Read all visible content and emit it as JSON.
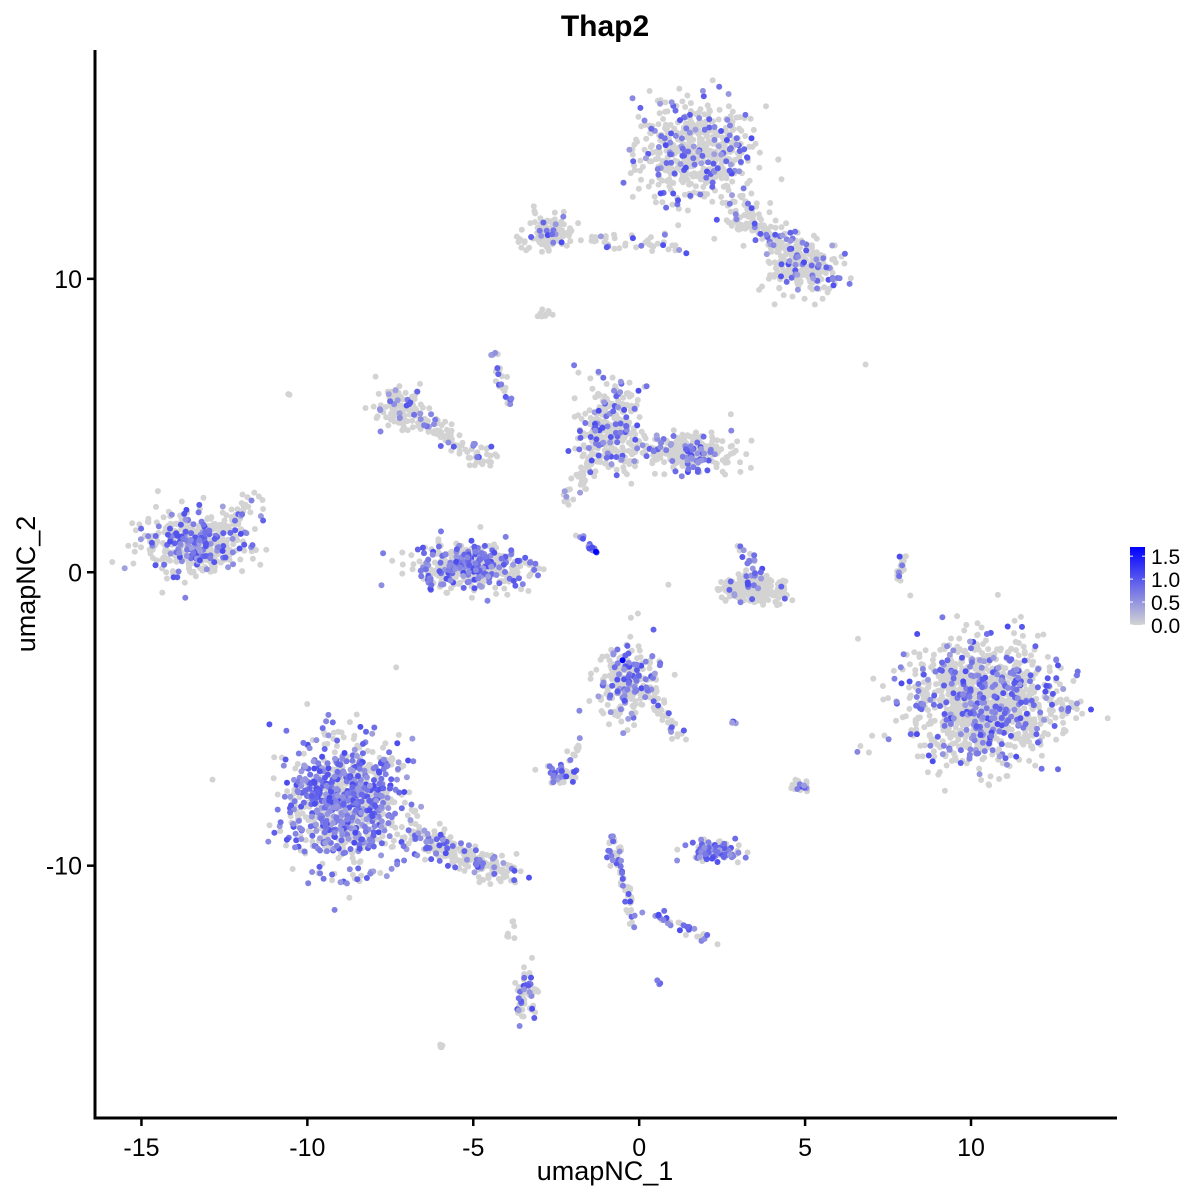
{
  "chart_data": {
    "type": "scatter",
    "title": "Thap2",
    "xlabel": "umapNC_1",
    "ylabel": "umapNC_2",
    "xlim": [
      -16.4,
      14.4
    ],
    "ylim": [
      -18.6,
      17.8
    ],
    "x_ticks": [
      -15,
      -10,
      -5,
      0,
      5,
      10
    ],
    "x_tick_labels": [
      "-15",
      "-10",
      "-5",
      "0",
      "5",
      "10"
    ],
    "y_ticks": [
      -10,
      0,
      10
    ],
    "y_tick_labels": [
      "-10",
      "0",
      "10"
    ],
    "grid": false,
    "color_scale": {
      "low": "#D3D3D3",
      "high": "#0000FF",
      "range": [
        0,
        1.7
      ],
      "legend_ticks": [
        0,
        0.5,
        1.0,
        1.5
      ],
      "legend_tick_labels": [
        "0.0",
        "0.5",
        "1.0",
        "1.5"
      ],
      "legend_placement": "right"
    },
    "clusters": [
      {
        "center": [
          1.7,
          14.3
        ],
        "spread": [
          1.2,
          1.1
        ],
        "n": 520,
        "expr_frac": 0.2
      },
      {
        "center": [
          2.8,
          12.5
        ],
        "to": [
          5.3,
          10.3
        ],
        "spread": [
          0.5,
          0.4
        ],
        "n": 180,
        "expr_frac": 0.15
      },
      {
        "center": [
          4.9,
          10.4
        ],
        "spread": [
          0.8,
          0.6
        ],
        "n": 160,
        "expr_frac": 0.2
      },
      {
        "center": [
          -2.7,
          11.6
        ],
        "spread": [
          0.5,
          0.35
        ],
        "n": 120,
        "expr_frac": 0.15
      },
      {
        "center": [
          -1.8,
          11.4
        ],
        "to": [
          1.2,
          11.0
        ],
        "spread": [
          0.3,
          0.2
        ],
        "n": 40,
        "expr_frac": 0.2
      },
      {
        "center": [
          -13.4,
          1.0
        ],
        "spread": [
          1.1,
          0.75
        ],
        "n": 420,
        "expr_frac": 0.3
      },
      {
        "center": [
          -12.6,
          1.3
        ],
        "to": [
          -11.5,
          2.7
        ],
        "spread": [
          0.25,
          0.2
        ],
        "n": 40,
        "expr_frac": 0.1
      },
      {
        "center": [
          -7.2,
          5.6
        ],
        "spread": [
          0.5,
          0.4
        ],
        "n": 110,
        "expr_frac": 0.1
      },
      {
        "center": [
          -6.6,
          5.2
        ],
        "to": [
          -4.5,
          3.8
        ],
        "spread": [
          0.35,
          0.3
        ],
        "n": 90,
        "expr_frac": 0.2
      },
      {
        "center": [
          -5.1,
          0.2
        ],
        "spread": [
          1.15,
          0.5
        ],
        "n": 420,
        "expr_frac": 0.4
      },
      {
        "center": [
          -4.4,
          7.5
        ],
        "to": [
          -3.8,
          5.3
        ],
        "spread": [
          0.1,
          0.1
        ],
        "n": 25,
        "expr_frac": 0.6
      },
      {
        "center": [
          -0.9,
          4.9
        ],
        "spread": [
          0.6,
          0.9
        ],
        "n": 300,
        "expr_frac": 0.25
      },
      {
        "center": [
          1.4,
          4.1
        ],
        "spread": [
          0.95,
          0.4
        ],
        "n": 260,
        "expr_frac": 0.2
      },
      {
        "center": [
          -2.2,
          2.5
        ],
        "to": [
          -1.2,
          4.0
        ],
        "spread": [
          0.2,
          0.2
        ],
        "n": 40,
        "expr_frac": 0.1
      },
      {
        "center": [
          -1.8,
          1.3
        ],
        "to": [
          -1.3,
          0.7
        ],
        "spread": [
          0.08,
          0.08
        ],
        "n": 14,
        "expr_frac": 0.9
      },
      {
        "center": [
          3.4,
          -0.6
        ],
        "spread": [
          0.7,
          0.3
        ],
        "n": 220,
        "expr_frac": 0.05
      },
      {
        "center": [
          3.0,
          0.9
        ],
        "to": [
          3.6,
          -0.2
        ],
        "spread": [
          0.15,
          0.15
        ],
        "n": 30,
        "expr_frac": 0.3
      },
      {
        "center": [
          10.4,
          -4.4
        ],
        "spread": [
          1.5,
          1.35
        ],
        "n": 1200,
        "expr_frac": 0.2
      },
      {
        "center": [
          -8.9,
          -7.9
        ],
        "spread": [
          1.1,
          1.45
        ],
        "n": 950,
        "expr_frac": 0.5
      },
      {
        "center": [
          -7.0,
          -8.8
        ],
        "to": [
          -3.9,
          -10.3
        ],
        "spread": [
          0.35,
          0.3
        ],
        "n": 220,
        "expr_frac": 0.3
      },
      {
        "center": [
          -0.4,
          -3.7
        ],
        "spread": [
          0.55,
          0.8
        ],
        "n": 260,
        "expr_frac": 0.3
      },
      {
        "center": [
          0.4,
          -4.2
        ],
        "to": [
          1.2,
          -5.6
        ],
        "spread": [
          0.2,
          0.2
        ],
        "n": 40,
        "expr_frac": 0.2
      },
      {
        "center": [
          2.3,
          -9.5
        ],
        "spread": [
          0.5,
          0.25
        ],
        "n": 110,
        "expr_frac": 0.6
      },
      {
        "center": [
          -0.9,
          -9.0
        ],
        "to": [
          -0.1,
          -11.9
        ],
        "spread": [
          0.15,
          0.15
        ],
        "n": 60,
        "expr_frac": 0.4
      },
      {
        "center": [
          0.3,
          -11.6
        ],
        "to": [
          2.4,
          -12.6
        ],
        "spread": [
          0.15,
          0.12
        ],
        "n": 30,
        "expr_frac": 0.5
      },
      {
        "center": [
          -3.4,
          -14.4
        ],
        "spread": [
          0.2,
          0.6
        ],
        "n": 60,
        "expr_frac": 0.3
      },
      {
        "center": [
          -2.4,
          -6.9
        ],
        "spread": [
          0.35,
          0.25
        ],
        "n": 50,
        "expr_frac": 0.4
      },
      {
        "center": [
          -1.8,
          -5.7
        ],
        "to": [
          -2.2,
          -6.5
        ],
        "spread": [
          0.1,
          0.1
        ],
        "n": 10,
        "expr_frac": 0.3
      },
      {
        "center": [
          4.9,
          -7.3
        ],
        "spread": [
          0.2,
          0.15
        ],
        "n": 20,
        "expr_frac": 0.6
      },
      {
        "center": [
          2.8,
          -5.1
        ],
        "spread": [
          0.1,
          0.05
        ],
        "n": 5,
        "expr_frac": 0.4
      },
      {
        "center": [
          8.0,
          0.6
        ],
        "to": [
          7.8,
          -0.3
        ],
        "spread": [
          0.08,
          0.08
        ],
        "n": 18,
        "expr_frac": 0.3
      },
      {
        "center": [
          -2.8,
          8.8
        ],
        "spread": [
          0.15,
          0.1
        ],
        "n": 12,
        "expr_frac": 0.0
      },
      {
        "center": [
          -3.8,
          -12.2
        ],
        "spread": [
          0.1,
          0.3
        ],
        "n": 8,
        "expr_frac": 0.0
      },
      {
        "center": [
          -6.0,
          -16.1
        ],
        "spread": [
          0.08,
          0.08
        ],
        "n": 4,
        "expr_frac": 0.1
      },
      {
        "center": [
          0.6,
          -14.0
        ],
        "spread": [
          0.05,
          0.05
        ],
        "n": 3,
        "expr_frac": 1.0
      },
      {
        "center": [
          6.8,
          7.1
        ],
        "spread": [
          0.02,
          0.02
        ],
        "n": 1,
        "expr_frac": 0.0
      },
      {
        "center": [
          -10.6,
          6.1
        ],
        "spread": [
          0.03,
          0.03
        ],
        "n": 2,
        "expr_frac": 0.0
      }
    ],
    "max_points": [
      [
        -1.3,
        0.7
      ],
      [
        -0.5,
        -3.0
      ]
    ]
  }
}
